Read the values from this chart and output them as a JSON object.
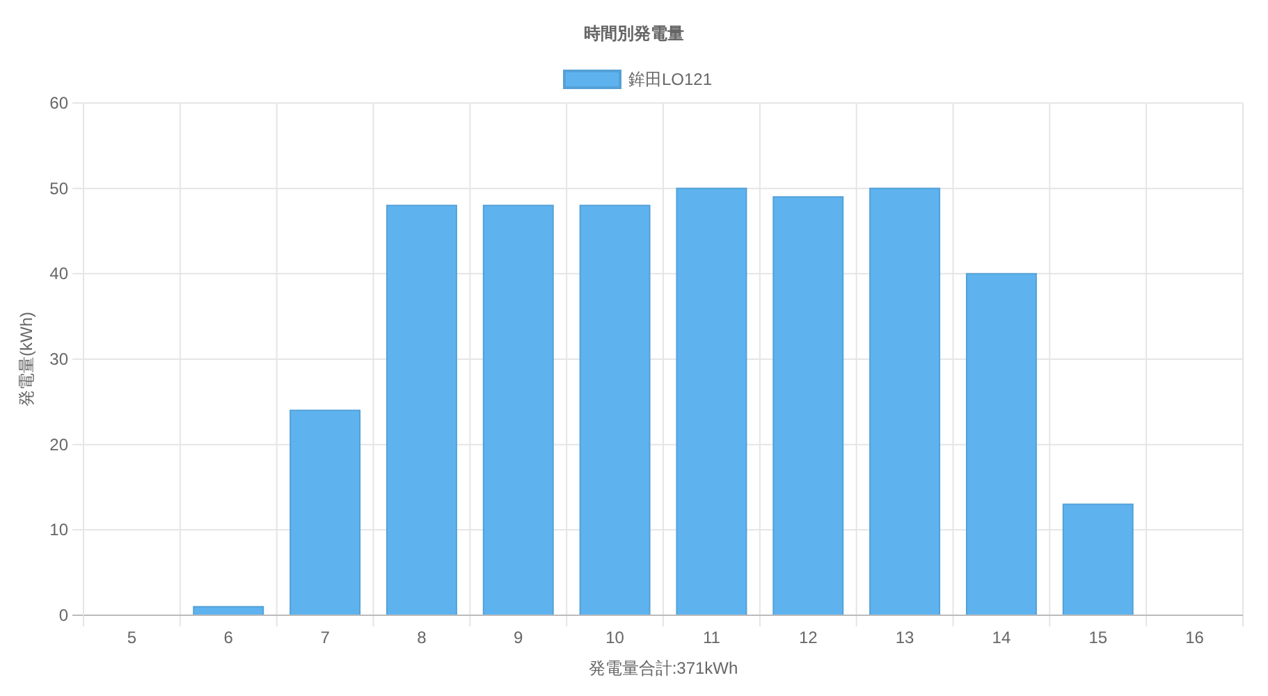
{
  "chart_data": {
    "type": "bar",
    "title": "時間別発電量",
    "xlabel": "発電量合計:371kWh",
    "ylabel": "発電量(kWh)",
    "categories": [
      "5",
      "6",
      "7",
      "8",
      "9",
      "10",
      "11",
      "12",
      "13",
      "14",
      "15",
      "16"
    ],
    "series": [
      {
        "name": "鉾田LO121",
        "color": "#5eb3ef",
        "values": [
          0,
          1,
          24,
          48,
          48,
          48,
          50,
          49,
          50,
          40,
          13,
          0
        ]
      }
    ],
    "ylim": [
      0,
      60
    ],
    "yticks": [
      0,
      10,
      20,
      30,
      40,
      50,
      60
    ],
    "grid": true,
    "legend": "top"
  }
}
